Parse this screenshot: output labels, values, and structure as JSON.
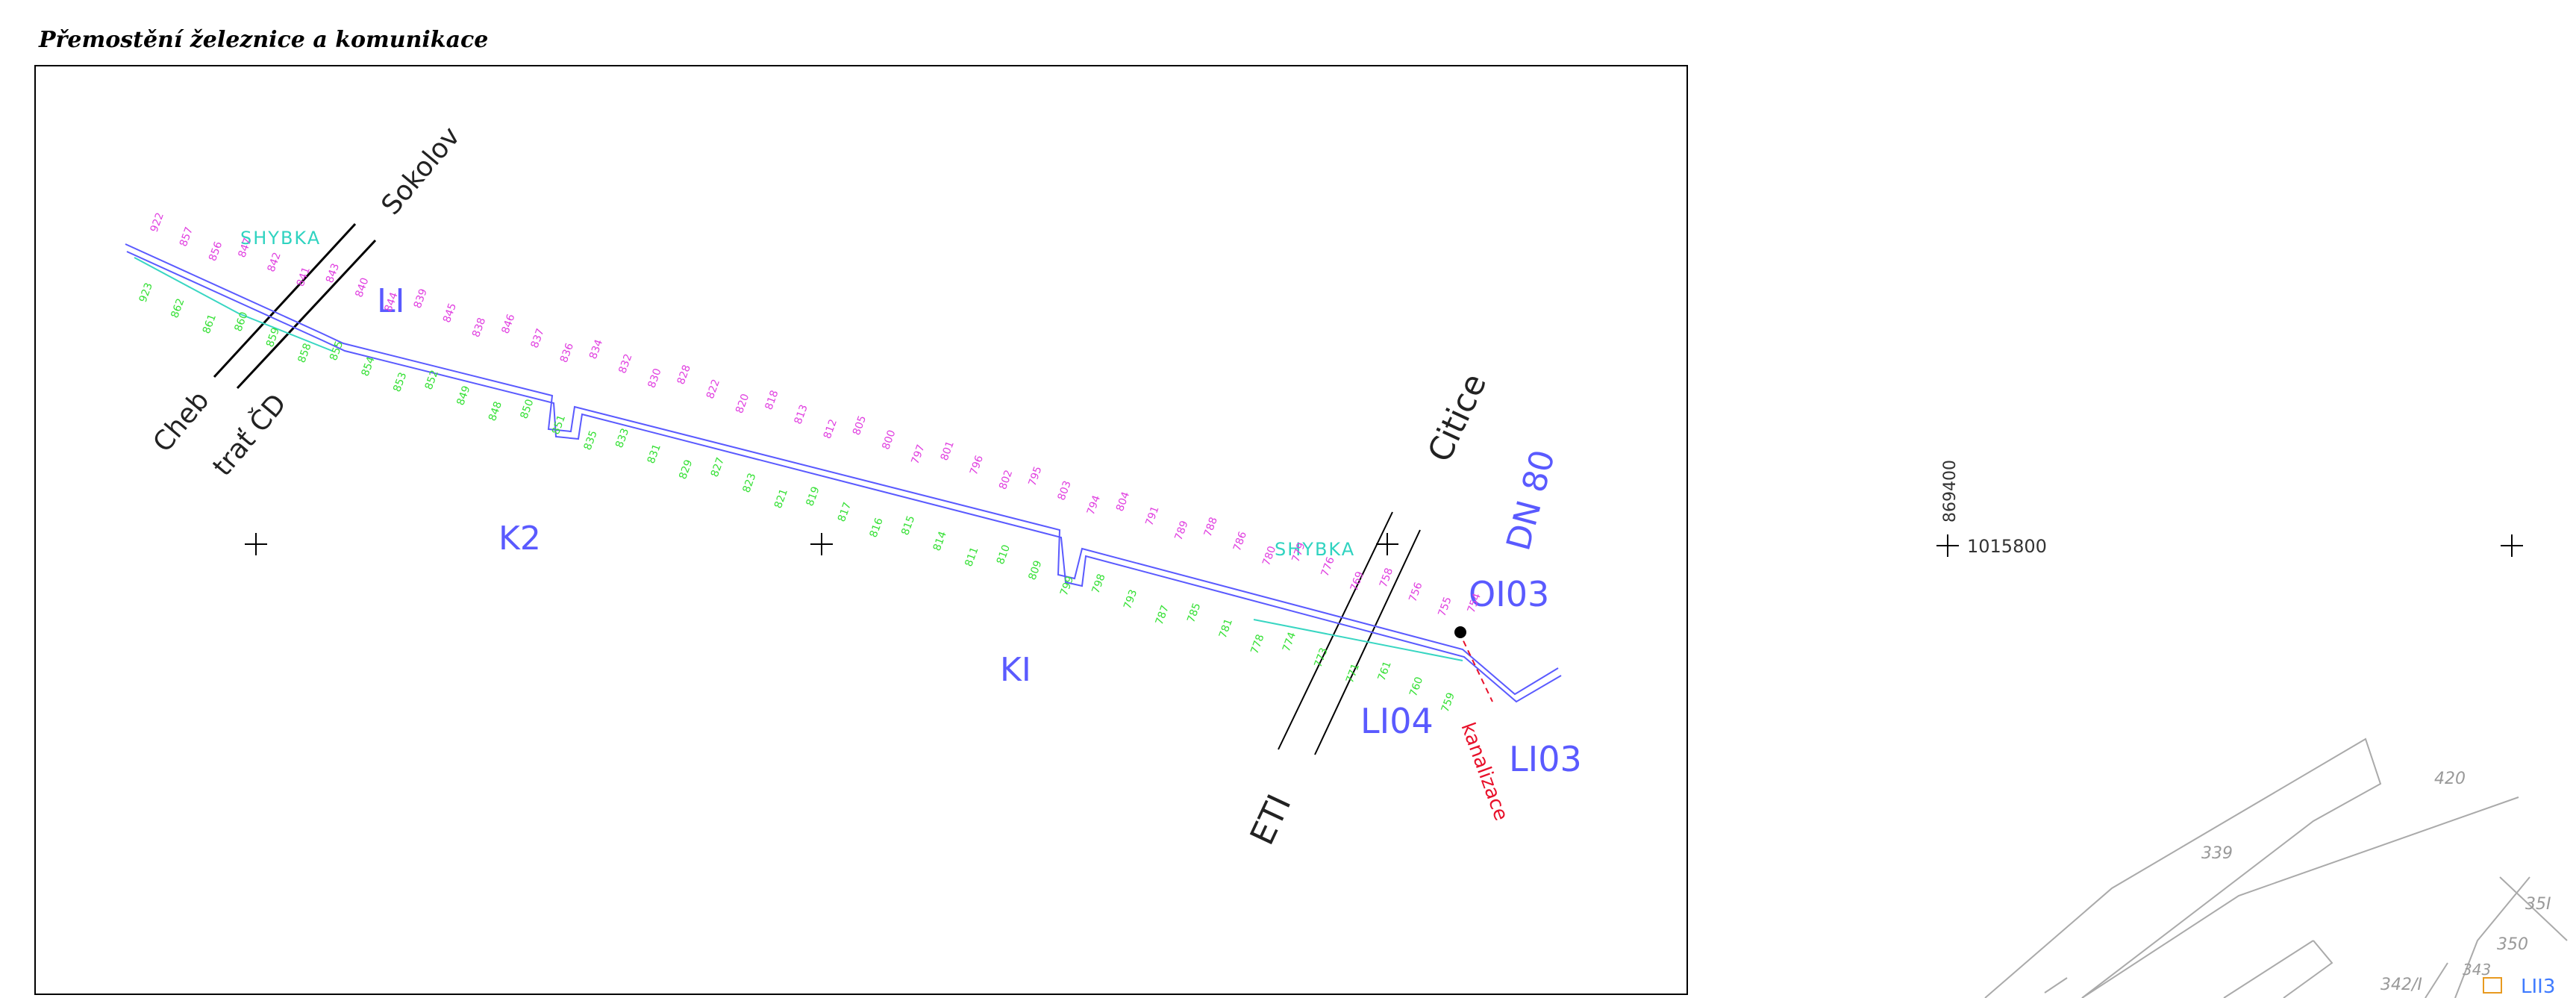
{
  "title": "Přemostění železnice a komunikace",
  "colors": {
    "frame": "#000000",
    "pipe_main": "#5a5aff",
    "pipe_cyan": "#38d6c2",
    "label_blue": "#5a5aff",
    "label_cyan": "#2fd3c0",
    "points_magenta": "#e040e0",
    "points_green": "#35e035",
    "sewer_red": "#e8102a",
    "parcel_gray": "#aaaaaa",
    "parcel_orange": "#e89a20"
  },
  "labels": {
    "shybka_1": "SHYBKA",
    "shybka_2": "SHYBKA",
    "l1": "LI",
    "k2": "K2",
    "k1": "KI",
    "o103": "OI03",
    "l104": "LI04",
    "l103": "LI03",
    "dn80": "DN 80",
    "citice": "Citice",
    "sokolov": "Sokolov",
    "cheb": "Cheb",
    "trat": "trať ČD",
    "eti": "ETI",
    "kanalizace": "kanalizace",
    "coord_y": "869400",
    "coord_x": "1015800"
  },
  "parcels": {
    "p420": "420",
    "p339": "339",
    "p351": "35I",
    "p350": "350",
    "p342": "342/I",
    "p343": "343",
    "l113": "LII3"
  },
  "points_magenta": [
    "922",
    "857",
    "856",
    "847",
    "842",
    "841",
    "843",
    "840",
    "844",
    "839",
    "845",
    "838",
    "846",
    "837",
    "836",
    "834",
    "832",
    "830",
    "828",
    "822",
    "820",
    "818",
    "813",
    "812",
    "805",
    "800",
    "797",
    "801",
    "796",
    "802",
    "795",
    "803",
    "794",
    "804",
    "791",
    "789",
    "788",
    "786",
    "780",
    "779",
    "776",
    "769",
    "758",
    "756",
    "755",
    "754"
  ],
  "points_green": [
    "923",
    "862",
    "861",
    "860",
    "859",
    "858",
    "855",
    "854",
    "853",
    "852",
    "849",
    "848",
    "850",
    "851",
    "835",
    "833",
    "831",
    "829",
    "827",
    "823",
    "821",
    "819",
    "817",
    "816",
    "815",
    "814",
    "811",
    "810",
    "809",
    "799",
    "798",
    "793",
    "787",
    "785",
    "781",
    "778",
    "774",
    "773",
    "771",
    "761",
    "760",
    "759"
  ]
}
